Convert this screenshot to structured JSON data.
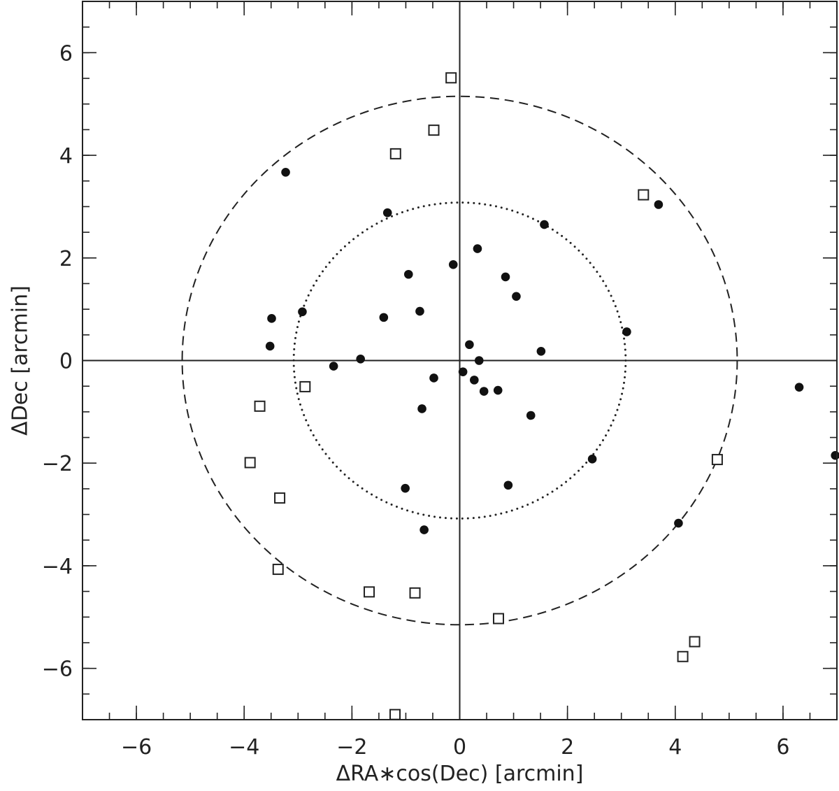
{
  "chart_data": {
    "type": "scatter",
    "title": "",
    "xlabel": "ΔRA∗cos(Dec) [arcmin]",
    "ylabel": "ΔDec [arcmin]",
    "xlim": [
      -7,
      7
    ],
    "ylim": [
      -7,
      7
    ],
    "x_ticks": [
      -6,
      -4,
      -2,
      0,
      2,
      4,
      6
    ],
    "y_ticks": [
      -6,
      -4,
      -2,
      0,
      2,
      4,
      6
    ],
    "x_tick_labels": [
      "−6",
      "−4",
      "−2",
      "0",
      "2",
      "4",
      "6"
    ],
    "y_tick_labels": [
      "−6",
      "−4",
      "−2",
      "0",
      "2",
      "4",
      "6"
    ],
    "minor_tick_step": 0.5,
    "grid": false,
    "legend": "none",
    "reference_lines": [
      {
        "orientation": "vertical",
        "value": 0
      },
      {
        "orientation": "horizontal",
        "value": 0
      }
    ],
    "circles": [
      {
        "center": [
          0,
          0
        ],
        "radius": 5.15,
        "style": "dashed"
      },
      {
        "center": [
          0,
          0
        ],
        "radius": 3.08,
        "style": "dotted"
      }
    ],
    "series": [
      {
        "marker": "filled-circle",
        "points": [
          [
            -3.23,
            3.67
          ],
          [
            -1.34,
            2.88
          ],
          [
            1.57,
            2.65
          ],
          [
            3.69,
            3.04
          ],
          [
            0.33,
            2.18
          ],
          [
            -0.12,
            1.87
          ],
          [
            -0.95,
            1.68
          ],
          [
            0.85,
            1.63
          ],
          [
            1.05,
            1.25
          ],
          [
            -3.49,
            0.82
          ],
          [
            -2.92,
            0.95
          ],
          [
            -1.41,
            0.84
          ],
          [
            -0.74,
            0.96
          ],
          [
            -3.52,
            0.28
          ],
          [
            3.1,
            0.56
          ],
          [
            1.51,
            0.18
          ],
          [
            0.18,
            0.31
          ],
          [
            -2.34,
            -0.11
          ],
          [
            -1.84,
            0.03
          ],
          [
            0.36,
            0.0
          ],
          [
            0.06,
            -0.22
          ],
          [
            0.27,
            -0.38
          ],
          [
            -0.48,
            -0.34
          ],
          [
            0.45,
            -0.6
          ],
          [
            0.71,
            -0.58
          ],
          [
            -0.7,
            -0.94
          ],
          [
            1.32,
            -1.07
          ],
          [
            2.46,
            -1.92
          ],
          [
            6.3,
            -0.52
          ],
          [
            6.97,
            -1.85
          ],
          [
            -1.01,
            -2.49
          ],
          [
            0.9,
            -2.43
          ],
          [
            -0.66,
            -3.3
          ],
          [
            4.06,
            -3.17
          ]
        ]
      },
      {
        "marker": "open-square",
        "points": [
          [
            -0.16,
            5.51
          ],
          [
            -0.48,
            4.49
          ],
          [
            -1.19,
            4.03
          ],
          [
            3.41,
            3.23
          ],
          [
            -2.87,
            -0.51
          ],
          [
            -3.71,
            -0.89
          ],
          [
            -3.89,
            -1.99
          ],
          [
            -3.34,
            -2.68
          ],
          [
            4.78,
            -1.93
          ],
          [
            -3.37,
            -4.07
          ],
          [
            -1.68,
            -4.51
          ],
          [
            -0.83,
            -4.53
          ],
          [
            0.72,
            -5.03
          ],
          [
            4.14,
            -5.77
          ],
          [
            4.36,
            -5.48
          ],
          [
            -1.2,
            -6.9
          ]
        ]
      }
    ]
  }
}
